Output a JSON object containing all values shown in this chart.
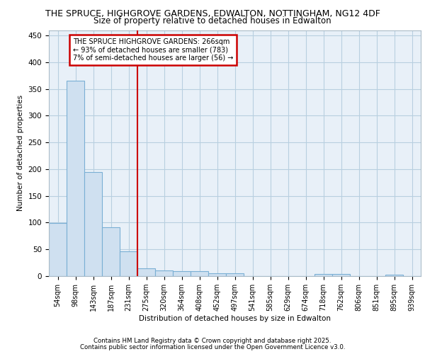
{
  "title_line1": "THE SPRUCE, HIGHGROVE GARDENS, EDWALTON, NOTTINGHAM, NG12 4DF",
  "title_line2": "Size of property relative to detached houses in Edwalton",
  "xlabel": "Distribution of detached houses by size in Edwalton",
  "ylabel": "Number of detached properties",
  "bar_labels": [
    "54sqm",
    "98sqm",
    "143sqm",
    "187sqm",
    "231sqm",
    "275sqm",
    "320sqm",
    "364sqm",
    "408sqm",
    "452sqm",
    "497sqm",
    "541sqm",
    "585sqm",
    "629sqm",
    "674sqm",
    "718sqm",
    "762sqm",
    "806sqm",
    "851sqm",
    "895sqm",
    "939sqm"
  ],
  "bar_values": [
    99,
    366,
    195,
    92,
    46,
    15,
    11,
    9,
    9,
    5,
    5,
    0,
    0,
    0,
    0,
    4,
    4,
    0,
    0,
    2,
    0
  ],
  "bar_color": "#cfe0f0",
  "bar_edge_color": "#7aafd4",
  "red_line_index": 5,
  "annotation_line1": "THE SPRUCE HIGHGROVE GARDENS: 266sqm",
  "annotation_line2": "← 93% of detached houses are smaller (783)",
  "annotation_line3": "7% of semi-detached houses are larger (56) →",
  "annotation_box_color": "#ffffff",
  "annotation_box_edge": "#cc0000",
  "red_line_color": "#cc0000",
  "ylim": [
    0,
    460
  ],
  "yticks": [
    0,
    50,
    100,
    150,
    200,
    250,
    300,
    350,
    400,
    450
  ],
  "grid_color": "#b8cfe0",
  "bg_color": "#e8f0f8",
  "footer_line1": "Contains HM Land Registry data © Crown copyright and database right 2025.",
  "footer_line2": "Contains public sector information licensed under the Open Government Licence v3.0."
}
